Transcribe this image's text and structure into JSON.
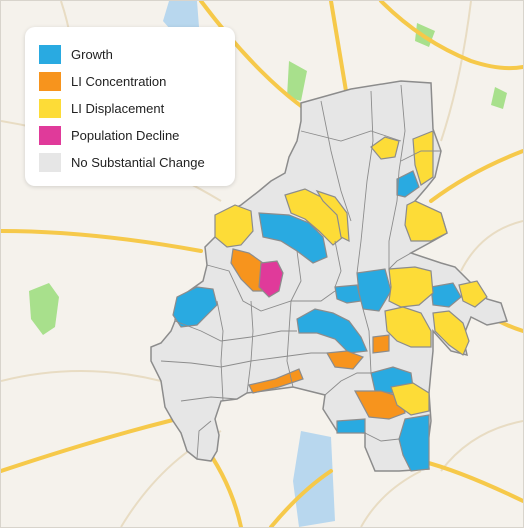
{
  "colors": {
    "growth": "#29aae1",
    "li_concentration": "#f7941d",
    "li_displacement": "#fddc37",
    "population_decline": "#e03a9a",
    "no_change": "#e6e6e6",
    "boundary": "#8c8c8c",
    "land": "#f5f2ec",
    "highway": "#f6c94a",
    "road": "#e8dcc3",
    "park": "#a8e08c",
    "water": "#b8d7ee"
  },
  "legend": {
    "items": [
      {
        "key": "growth",
        "label": "Growth"
      },
      {
        "key": "li_concentration",
        "label": "LI Concentration"
      },
      {
        "key": "li_displacement",
        "label": "LI Displacement"
      },
      {
        "key": "population_decline",
        "label": "Population Decline"
      },
      {
        "key": "no_change",
        "label": "No Substantial Change"
      }
    ]
  }
}
